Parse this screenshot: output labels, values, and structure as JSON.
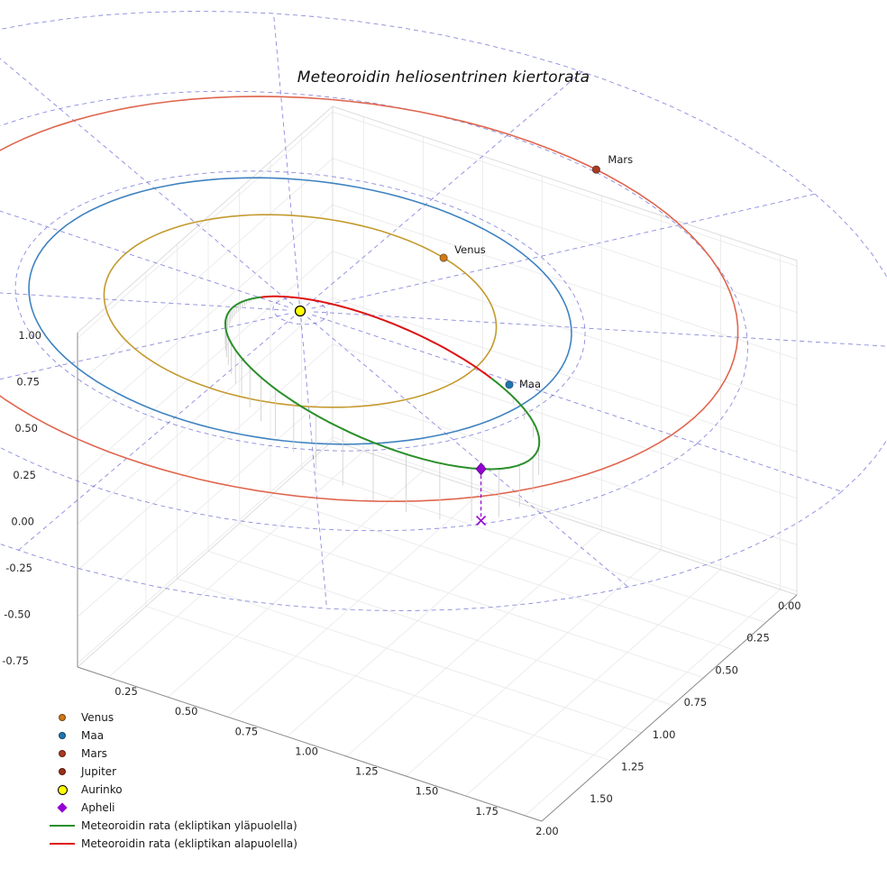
{
  "chart_data": {
    "type": "line",
    "subtype": "3d-orbital-plot",
    "title": "Meteoroidin heliosentrinen kiertorata",
    "axes": {
      "x_ticks": [
        "0.25",
        "0.50",
        "0.75",
        "1.00",
        "1.25",
        "1.50",
        "1.75",
        "2.00"
      ],
      "y_ticks": [
        "0.00",
        "0.25",
        "0.50",
        "0.75",
        "1.00",
        "1.25",
        "1.50"
      ],
      "z_ticks": [
        "1.00",
        "0.75",
        "0.50",
        "0.25",
        "0.00",
        "-0.25",
        "-0.50",
        "-0.75"
      ]
    },
    "sun": {
      "label": "Aurinko",
      "color": "#ffff00",
      "edge_color": "#000000",
      "position": [
        0,
        0,
        0
      ]
    },
    "bodies": [
      {
        "name": "venus",
        "label": "Venus",
        "orbit_radius_au": 0.723,
        "orbit_color": "#c49a2e",
        "marker_color": "#d07818",
        "position": [
          0.241,
          -0.682,
          0
        ],
        "label_offset": [
          12,
          -5
        ]
      },
      {
        "name": "maa",
        "label": "Maa",
        "orbit_radius_au": 1.0,
        "orbit_color": "#3f83c0",
        "marker_color": "#1f77b4",
        "position": [
          0.883,
          0.027,
          0
        ],
        "label_offset": [
          11,
          3
        ]
      },
      {
        "name": "mars",
        "label": "Mars",
        "orbit_a_au": 1.524,
        "orbit_e": 0.0934,
        "perihelion_longitude_deg": 103.4,
        "orbit_color": "#e0654e",
        "marker_color": "#aa3a22",
        "position_angle_deg": -76.6,
        "label_offset": [
          13,
          -7
        ]
      },
      {
        "name": "jupiter",
        "label": "Jupiter",
        "marker_color": "#993016"
      }
    ],
    "meteoroid": {
      "a_au": 0.9,
      "e": 0.8333,
      "inclination_deg": 16,
      "arg_perihelion_deg": 217.7,
      "node_longitude_deg": 1.7,
      "above_color": "#2a8f2a",
      "below_color": "#dd1111",
      "above_label": "Meteoroidin rata (ekliptikan yläpuolella)",
      "below_label": "Meteoroidin rata (ekliptikan alapuolella)",
      "node_nu_deg": [
        142.3,
        322.3
      ],
      "aphelion": {
        "label": "Apheli",
        "color": "#9400d3",
        "nu_deg": 180
      },
      "stem_color": "#cccccc"
    },
    "grid": {
      "ring_radii_au": [
        0.1,
        1.05,
        1.65,
        2.25
      ],
      "n_radial": 12,
      "radial_extent_au": 2.25,
      "color": "#5a5ad0"
    },
    "legend": [
      {
        "label": "Venus",
        "type": "dot",
        "color": "#d07818"
      },
      {
        "label": "Maa",
        "type": "dot",
        "color": "#1f77b4"
      },
      {
        "label": "Mars",
        "type": "dot",
        "color": "#aa3a22"
      },
      {
        "label": "Jupiter",
        "type": "dot",
        "color": "#993016"
      },
      {
        "label": "Aurinko",
        "type": "dot-big",
        "color": "#ffff00",
        "edge": "#000000"
      },
      {
        "label": "Apheli",
        "type": "diamond",
        "color": "#9400d3"
      },
      {
        "label": "Meteoroidin rata (ekliptikan yläpuolella)",
        "type": "line",
        "color": "#2a8f2a"
      },
      {
        "label": "Meteoroidin rata (ekliptikan alapuolella)",
        "type": "line",
        "color": "#dd1111"
      }
    ],
    "view": {
      "origin": [
        333,
        345
      ],
      "ex": [
        267,
        89
      ],
      "ey": [
        -139,
        118
      ],
      "ez": [
        0,
        -206
      ],
      "box": {
        "L": [
          86,
          740
        ],
        "F": [
          601,
          911
        ],
        "R": [
          884,
          660
        ],
        "wall_h": 371,
        "xrange": [
          0.12,
          2.07
        ],
        "yrange": [
          0.0,
          2.05
        ],
        "zrange": [
          -0.77,
          1.03
        ]
      },
      "xtick0": [
        140,
        771
      ],
      "xtick_step": [
        66.7,
        22.14
      ],
      "ytick0": [
        863,
        676
      ],
      "ytick_step": [
        -34.8,
        35.7
      ],
      "ztick0": [
        46,
        376
      ],
      "ztick_step": [
        -2,
        51.6
      ],
      "tick_color": "#262626",
      "pane_edge_color": "#dcdcdc",
      "grid_color": "#ececec",
      "axis_color": "#8a8a8a"
    }
  }
}
